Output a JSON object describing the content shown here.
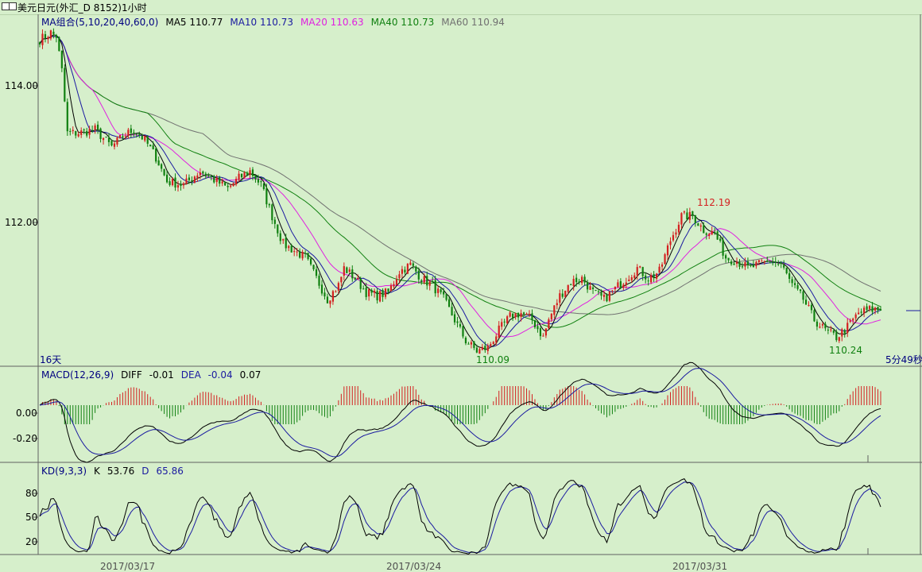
{
  "window": {
    "title": "美元日元(外汇_D 8152)1小时"
  },
  "main_panel": {
    "legend": [
      {
        "label": "MA组合(5,10,20,40,60,0)",
        "color": "#000080"
      },
      {
        "label": "MA5 110.77",
        "color": "#000000"
      },
      {
        "label": "MA10 110.73",
        "color": "#1a1aa0"
      },
      {
        "label": "MA20 110.63",
        "color": "#e020e0"
      },
      {
        "label": "MA40 110.73",
        "color": "#108010"
      },
      {
        "label": "MA60 110.94",
        "color": "#707070"
      }
    ],
    "y_ticks": [
      "114.00",
      "112.00"
    ],
    "high_label": "112.19",
    "low_label_1": "110.09",
    "low_label_2": "110.24",
    "period_label": "16天",
    "countdown": "5分49秒"
  },
  "macd_panel": {
    "legend": [
      {
        "label": "MACD(12,26,9)",
        "color": "#000080"
      },
      {
        "label": "DIFF",
        "color": "#000000"
      },
      {
        "label": "-0.01",
        "color": "#000000"
      },
      {
        "label": "DEA",
        "color": "#1a1aa0"
      },
      {
        "label": "-0.04",
        "color": "#1a1aa0"
      },
      {
        "label": "0.07",
        "color": "#000000"
      }
    ],
    "y_ticks": [
      "0.00",
      "-0.20"
    ]
  },
  "kd_panel": {
    "legend": [
      {
        "label": "KD(9,3,3)",
        "color": "#000080"
      },
      {
        "label": "K",
        "color": "#000000"
      },
      {
        "label": "53.76",
        "color": "#000000"
      },
      {
        "label": "D",
        "color": "#1a1aa0"
      },
      {
        "label": "65.86",
        "color": "#1a1aa0"
      }
    ],
    "y_ticks": [
      "80",
      "50",
      "20"
    ]
  },
  "x_labels": [
    "2017/03/17",
    "2017/03/24",
    "2017/03/31"
  ],
  "colors": {
    "background": "#d6efcb",
    "up": "#d42020",
    "down": "#108010",
    "ma5": "#000000",
    "ma10": "#1a1aa0",
    "ma20": "#e020e0",
    "ma40": "#108010",
    "ma60": "#707070"
  },
  "chart_data": {
    "type": "line",
    "title": "美元日元(外汇_D 8152)1小时",
    "price_anchors": [
      [
        0,
        114.65
      ],
      [
        4,
        114.75
      ],
      [
        6,
        114.7
      ],
      [
        8,
        114.2
      ],
      [
        10,
        113.3
      ],
      [
        14,
        113.3
      ],
      [
        20,
        113.35
      ],
      [
        26,
        113.1
      ],
      [
        30,
        113.25
      ],
      [
        34,
        113.35
      ],
      [
        38,
        113.2
      ],
      [
        42,
        112.95
      ],
      [
        46,
        112.6
      ],
      [
        52,
        112.55
      ],
      [
        58,
        112.75
      ],
      [
        64,
        112.6
      ],
      [
        68,
        112.5
      ],
      [
        72,
        112.65
      ],
      [
        76,
        112.75
      ],
      [
        80,
        112.55
      ],
      [
        84,
        112.1
      ],
      [
        88,
        111.7
      ],
      [
        92,
        111.6
      ],
      [
        96,
        111.5
      ],
      [
        100,
        111.2
      ],
      [
        104,
        110.9
      ],
      [
        108,
        111.1
      ],
      [
        110,
        111.35
      ],
      [
        114,
        111.2
      ],
      [
        118,
        111.0
      ],
      [
        122,
        110.95
      ],
      [
        126,
        111.0
      ],
      [
        130,
        111.3
      ],
      [
        134,
        111.4
      ],
      [
        138,
        111.2
      ],
      [
        142,
        111.1
      ],
      [
        146,
        110.9
      ],
      [
        150,
        110.6
      ],
      [
        154,
        110.3
      ],
      [
        158,
        110.15
      ],
      [
        162,
        110.2
      ],
      [
        166,
        110.45
      ],
      [
        170,
        110.65
      ],
      [
        174,
        110.7
      ],
      [
        178,
        110.6
      ],
      [
        182,
        110.35
      ],
      [
        184,
        110.6
      ],
      [
        188,
        110.95
      ],
      [
        192,
        111.15
      ],
      [
        196,
        111.2
      ],
      [
        200,
        111.0
      ],
      [
        204,
        110.9
      ],
      [
        208,
        111.05
      ],
      [
        212,
        111.2
      ],
      [
        216,
        111.35
      ],
      [
        220,
        111.2
      ],
      [
        224,
        111.3
      ],
      [
        228,
        111.75
      ],
      [
        232,
        112.1
      ],
      [
        236,
        112.1
      ],
      [
        240,
        111.9
      ],
      [
        244,
        111.85
      ],
      [
        248,
        111.5
      ],
      [
        252,
        111.45
      ],
      [
        256,
        111.35
      ],
      [
        260,
        111.4
      ],
      [
        264,
        111.45
      ],
      [
        268,
        111.4
      ],
      [
        272,
        111.1
      ],
      [
        276,
        110.9
      ],
      [
        280,
        110.6
      ],
      [
        284,
        110.45
      ],
      [
        288,
        110.35
      ],
      [
        292,
        110.5
      ],
      [
        296,
        110.7
      ],
      [
        300,
        110.75
      ],
      [
        304,
        110.75
      ]
    ],
    "markers": [
      {
        "label": "112.19",
        "value": 112.19,
        "type": "high"
      },
      {
        "label": "110.09",
        "value": 110.09,
        "type": "low"
      },
      {
        "label": "110.24",
        "value": 110.24,
        "type": "low"
      }
    ],
    "main_ylim": [
      110.0,
      114.9
    ],
    "macd_ylim": [
      -0.35,
      0.22
    ],
    "kd_ylim": [
      5,
      100
    ],
    "x_ticks": [
      "2017/03/17",
      "2017/03/24",
      "2017/03/31"
    ],
    "series": [
      {
        "name": "MA5",
        "value": 110.77
      },
      {
        "name": "MA10",
        "value": 110.73
      },
      {
        "name": "MA20",
        "value": 110.63
      },
      {
        "name": "MA40",
        "value": 110.73
      },
      {
        "name": "MA60",
        "value": 110.94
      },
      {
        "name": "DIFF",
        "value": -0.01
      },
      {
        "name": "DEA",
        "value": -0.04
      },
      {
        "name": "MACD",
        "value": 0.07
      },
      {
        "name": "K",
        "value": 53.76
      },
      {
        "name": "D",
        "value": 65.86
      }
    ]
  }
}
